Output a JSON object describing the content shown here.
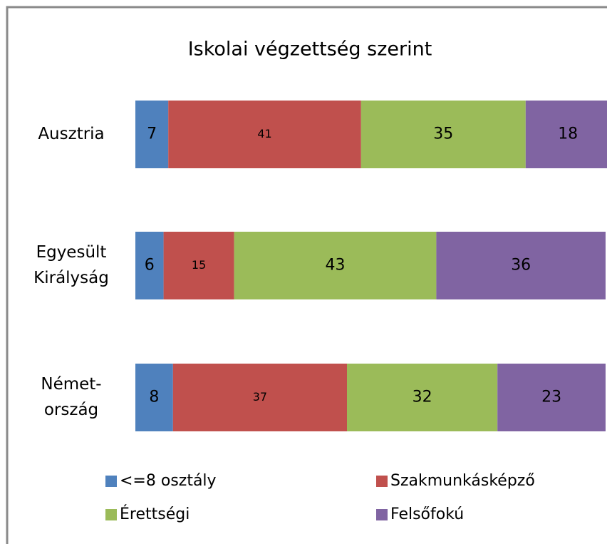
{
  "chart_data": {
    "type": "stacked_bar_horizontal",
    "title": "Iskolai végzettség szerint",
    "categories": [
      [
        "Ausztria"
      ],
      [
        "Egyesült",
        "Királyság"
      ],
      [
        "Német-",
        "ország"
      ]
    ],
    "series": [
      {
        "name": "<=8 osztály",
        "color": "#4f81bd",
        "values": [
          7,
          6,
          8
        ]
      },
      {
        "name": "Szakmunkásképző",
        "color": "#c0504d",
        "values": [
          41,
          15,
          37
        ]
      },
      {
        "name": "Érettségi",
        "color": "#9bbb59",
        "values": [
          35,
          43,
          32
        ]
      },
      {
        "name": "Felsőfokú",
        "color": "#8064a2",
        "values": [
          18,
          36,
          23
        ]
      }
    ]
  }
}
